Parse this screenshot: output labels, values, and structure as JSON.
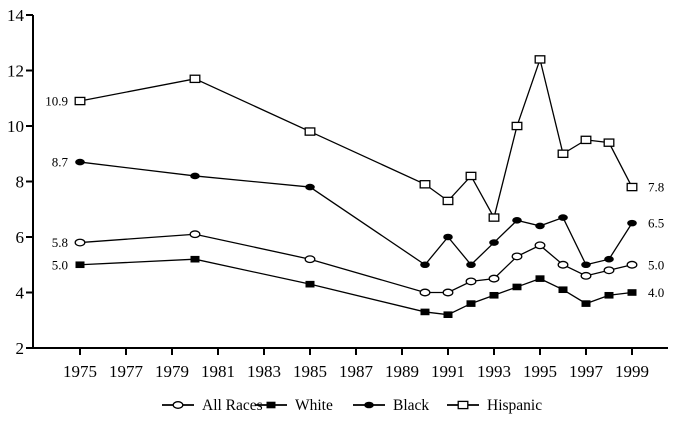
{
  "chart_data": {
    "type": "line",
    "title": "",
    "xlabel": "",
    "ylabel": "",
    "grid": false,
    "background": "#ffffff",
    "foreground": "#000000",
    "x": [
      1975,
      1980,
      1985,
      1990,
      1991,
      1992,
      1993,
      1994,
      1995,
      1996,
      1997,
      1998,
      1999
    ],
    "x_axis": {
      "tick_labels": [
        "1975",
        "1977",
        "1979",
        "1981",
        "1983",
        "1985",
        "1987",
        "1989",
        "1991",
        "1993",
        "1995",
        "1997",
        "1999"
      ],
      "min": 1973,
      "max": 2000.5
    },
    "y_axis": {
      "ticks": [
        2,
        4,
        6,
        8,
        10,
        12,
        14
      ],
      "tick_labels": [
        "2",
        "4",
        "6",
        "8",
        "10",
        "12",
        "14"
      ],
      "min": 2,
      "max": 14
    },
    "ylim": [
      2,
      14
    ],
    "legend": {
      "position": "bottom",
      "entries": [
        "All Races",
        "White",
        "Black",
        "Hispanic"
      ]
    },
    "series": [
      {
        "name": "All Races",
        "marker": "open-circle",
        "start_label": "5.8",
        "end_label": "5.0",
        "values": [
          5.8,
          6.1,
          5.2,
          4.0,
          4.0,
          4.4,
          4.5,
          5.3,
          5.7,
          5.0,
          4.6,
          4.8,
          5.0
        ]
      },
      {
        "name": "White",
        "marker": "filled-square",
        "start_label": "5.0",
        "end_label": "4.0",
        "values": [
          5.0,
          5.2,
          4.3,
          3.3,
          3.2,
          3.6,
          3.9,
          4.2,
          4.5,
          4.1,
          3.6,
          3.9,
          4.0
        ]
      },
      {
        "name": "Black",
        "marker": "filled-circle",
        "start_label": "8.7",
        "end_label": "6.5",
        "values": [
          8.7,
          8.2,
          7.8,
          5.0,
          6.0,
          5.0,
          5.8,
          6.6,
          6.4,
          6.7,
          5.0,
          5.2,
          6.5
        ]
      },
      {
        "name": "Hispanic",
        "marker": "open-square",
        "start_label": "10.9",
        "end_label": "7.8",
        "values": [
          10.9,
          11.7,
          9.8,
          7.9,
          7.3,
          8.2,
          6.7,
          10.0,
          12.4,
          9.0,
          9.5,
          9.4,
          7.8
        ]
      }
    ]
  }
}
